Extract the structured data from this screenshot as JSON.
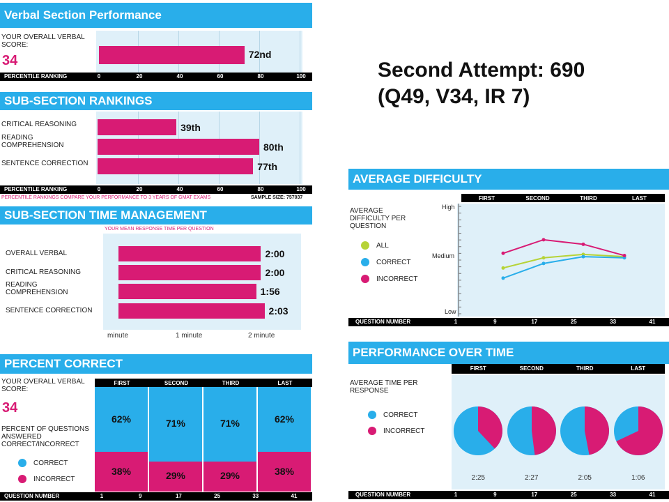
{
  "title": {
    "line1": "Second Attempt: 690",
    "line2": "(Q49, V34, IR 7)"
  },
  "verbal": {
    "header": "Verbal Section Performance",
    "score_label": "YOUR OVERALL VERBAL SCORE:",
    "score": "34",
    "percentile_label": "PERCENTILE RANKING",
    "bar_label": "72nd"
  },
  "subsection": {
    "header": "SUB-SECTION RANKINGS",
    "percentile_label": "PERCENTILE RANKING",
    "footnote": "PERCENTILE RANKINGS COMPARE YOUR PERFORMANCE TO 3 YEARS OF GMAT EXAMS",
    "sample": "SAMPLE SIZE: 757037",
    "rows": [
      {
        "label": "CRITICAL REASONING",
        "bar_label": "39th"
      },
      {
        "label": "READING COMPREHENSION",
        "bar_label": "80th"
      },
      {
        "label": "SENTENCE CORRECTION",
        "bar_label": "77th"
      }
    ]
  },
  "time_mgmt": {
    "header": "SUB-SECTION TIME MANAGEMENT",
    "subtitle": "YOUR MEAN RESPONSE TIME PER QUESTION",
    "rows": [
      {
        "label": "OVERALL VERBAL",
        "value": "2:00"
      },
      {
        "label": "CRITICAL REASONING",
        "value": "2:00"
      },
      {
        "label": "READING COMPREHENSION",
        "value": "1:56"
      },
      {
        "label": "SENTENCE CORRECTION",
        "value": "2:03"
      }
    ],
    "axis": [
      "minute",
      "1 minute",
      "2 minute"
    ]
  },
  "percent_correct": {
    "header": "PERCENT CORRECT",
    "score_label": "YOUR OVERALL VERBAL SCORE:",
    "score": "34",
    "desc": "PERCENT OF QUESTIONS ANSWERED CORRECT/INCORRECT",
    "legend_correct": "CORRECT",
    "legend_incorrect": "INCORRECT",
    "qn_label": "QUESTION NUMBER",
    "qn_ticks": [
      "1",
      "9",
      "17",
      "25",
      "33",
      "41"
    ]
  },
  "avg_difficulty": {
    "header": "AVERAGE DIFFICULTY",
    "desc": "AVERAGE DIFFICULTY PER QUESTION",
    "legend_all": "ALL",
    "legend_correct": "CORRECT",
    "legend_incorrect": "INCORRECT",
    "y_high": "High",
    "y_medium": "Medium",
    "y_low": "Low",
    "qn_label": "QUESTION NUMBER",
    "qn_ticks": [
      "1",
      "9",
      "17",
      "25",
      "33",
      "41"
    ]
  },
  "perf_time": {
    "header": "PERFORMANCE OVER TIME",
    "desc": "AVERAGE TIME PER RESPONSE",
    "legend_correct": "CORRECT",
    "legend_incorrect": "INCORRECT",
    "qn_label": "QUESTION NUMBER",
    "qn_ticks": [
      "1",
      "9",
      "17",
      "25",
      "33",
      "41"
    ]
  },
  "colors": {
    "accent": "#29aeea",
    "pink": "#d81b74",
    "green": "#b6d337",
    "panel": "#dff0f9"
  },
  "chart_data": [
    {
      "type": "bar",
      "title": "Verbal Section Performance",
      "categories": [
        ""
      ],
      "values": [
        72
      ],
      "xlabel": "PERCENTILE RANKING",
      "xlim": [
        0,
        100
      ],
      "ticks": [
        0,
        20,
        40,
        60,
        80,
        100
      ]
    },
    {
      "type": "bar",
      "title": "SUB-SECTION RANKINGS",
      "categories": [
        "CRITICAL REASONING",
        "READING COMPREHENSION",
        "SENTENCE CORRECTION"
      ],
      "values": [
        39,
        80,
        77
      ],
      "xlabel": "PERCENTILE RANKING",
      "xlim": [
        0,
        100
      ],
      "ticks": [
        0,
        20,
        40,
        60,
        80,
        100
      ]
    },
    {
      "type": "bar",
      "title": "SUB-SECTION TIME MANAGEMENT",
      "categories": [
        "OVERALL VERBAL",
        "CRITICAL REASONING",
        "READING COMPREHENSION",
        "SENTENCE CORRECTION"
      ],
      "values": [
        120,
        120,
        116,
        123
      ],
      "xlim": [
        0,
        135
      ]
    },
    {
      "type": "bar",
      "title": "PERCENT CORRECT",
      "categories": [
        "FIRST",
        "SECOND",
        "THIRD",
        "LAST"
      ],
      "series": [
        {
          "name": "CORRECT",
          "values": [
            62,
            71,
            71,
            62
          ]
        },
        {
          "name": "INCORRECT",
          "values": [
            38,
            29,
            29,
            38
          ]
        }
      ],
      "xlabel": "QUESTION NUMBER"
    },
    {
      "type": "line",
      "title": "AVERAGE DIFFICULTY",
      "categories": [
        "FIRST",
        "SECOND",
        "THIRD",
        "LAST"
      ],
      "series": [
        {
          "name": "ALL",
          "values": [
            0.43,
            0.52,
            0.55,
            0.53
          ]
        },
        {
          "name": "CORRECT",
          "values": [
            0.34,
            0.47,
            0.53,
            0.52
          ]
        },
        {
          "name": "INCORRECT",
          "values": [
            0.56,
            0.68,
            0.64,
            0.54
          ]
        }
      ],
      "xlabel": "QUESTION NUMBER",
      "ylim": [
        0,
        1
      ]
    },
    {
      "type": "pie",
      "title": "PERFORMANCE OVER TIME",
      "categories": [
        "FIRST",
        "SECOND",
        "THIRD",
        "LAST"
      ],
      "times": [
        "2:25",
        "2:27",
        "2:05",
        "1:06"
      ],
      "series": [
        {
          "name": "CORRECT",
          "values": [
            62,
            52,
            53,
            32
          ]
        },
        {
          "name": "INCORRECT",
          "values": [
            38,
            48,
            47,
            68
          ]
        }
      ]
    }
  ]
}
